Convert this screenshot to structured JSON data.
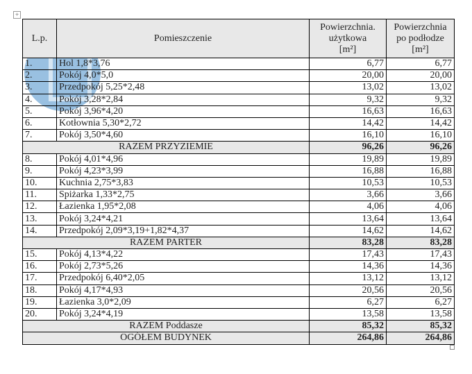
{
  "header": {
    "lp": "L.p.",
    "room": "Pomieszczenie",
    "usable": [
      "Powierzchnia.",
      "użytkowa",
      "[m²]"
    ],
    "floor": [
      "Powierzchnia",
      "po podłodze",
      "[m²]"
    ]
  },
  "rows": [
    {
      "type": "item",
      "lp": "1.",
      "name": "Hol 1,8*3,76",
      "a": "6,77",
      "b": "6,77"
    },
    {
      "type": "item",
      "lp": "2.",
      "name": "Pokój 4,0*5,0",
      "a": "20,00",
      "b": "20,00"
    },
    {
      "type": "item",
      "lp": "3.",
      "name": "Przedpokój 5,25*2,48",
      "a": "13,02",
      "b": "13,02"
    },
    {
      "type": "item",
      "lp": "4.",
      "name": "Pokój 3,28*2,84",
      "a": "9,32",
      "b": "9,32"
    },
    {
      "type": "item",
      "lp": "5.",
      "name": "Pokój 3,96*4,20",
      "a": "16,63",
      "b": "16,63"
    },
    {
      "type": "item",
      "lp": "6.",
      "name": "Kotłownia 5,30*2,72",
      "a": "14,42",
      "b": "14,42"
    },
    {
      "type": "item",
      "lp": "7.",
      "name": "Pokój 3,50*4,60",
      "a": "16,10",
      "b": "16,10"
    },
    {
      "type": "sum",
      "name": "RAZEM PRZYZIEMIE",
      "a": "96,26",
      "b": "96,26"
    },
    {
      "type": "item",
      "lp": "8.",
      "name": "Pokój 4,01*4,96",
      "a": "19,89",
      "b": "19,89"
    },
    {
      "type": "item",
      "lp": "9.",
      "name": "Pokój 4,23*3,99",
      "a": "16,88",
      "b": "16,88"
    },
    {
      "type": "item",
      "lp": "10.",
      "name": "Kuchnia 2,75*3,83",
      "a": "10,53",
      "b": "10,53"
    },
    {
      "type": "item",
      "lp": "11.",
      "name": "Spiżarka 1,33*2,75",
      "a": "3,66",
      "b": "3,66"
    },
    {
      "type": "item",
      "lp": "12.",
      "name": "Łazienka 1,95*2,08",
      "a": "4,06",
      "b": "4,06"
    },
    {
      "type": "item",
      "lp": "13.",
      "name": "Pokój 3,24*4,21",
      "a": "13,64",
      "b": "13,64"
    },
    {
      "type": "item",
      "lp": "14.",
      "name": "Przedpokój 2,09*3,19+1,82*4,37",
      "a": "14,62",
      "b": "14,62"
    },
    {
      "type": "sum",
      "name": "RAZEM PARTER",
      "a": "83,28",
      "b": "83,28"
    },
    {
      "type": "item",
      "lp": "15.",
      "name": "Pokój 4,13*4,22",
      "a": "17,43",
      "b": "17,43"
    },
    {
      "type": "item",
      "lp": "16.",
      "name": "Pokój 2,73*5,26",
      "a": "14,36",
      "b": "14,36"
    },
    {
      "type": "item",
      "lp": "17.",
      "name": "Przedpokój 6,40*2,05",
      "a": "13,12",
      "b": "13,12"
    },
    {
      "type": "item",
      "lp": "18.",
      "name": "Pokój 4,17*4,93",
      "a": "20,56",
      "b": "20,56"
    },
    {
      "type": "item",
      "lp": "19.",
      "name": "Łazienka 3,0*2,09",
      "a": "6,27",
      "b": "6,27"
    },
    {
      "type": "item",
      "lp": "20.",
      "name": "Pokój 3,24*4,19",
      "a": "13,58",
      "b": "13,58"
    },
    {
      "type": "sum",
      "name": "RAZEM Poddasze",
      "a": "85,32",
      "b": "85,32"
    },
    {
      "type": "total",
      "name": "OGÓŁEM BUDYNEK",
      "a": "264,86",
      "b": "264,86"
    }
  ]
}
